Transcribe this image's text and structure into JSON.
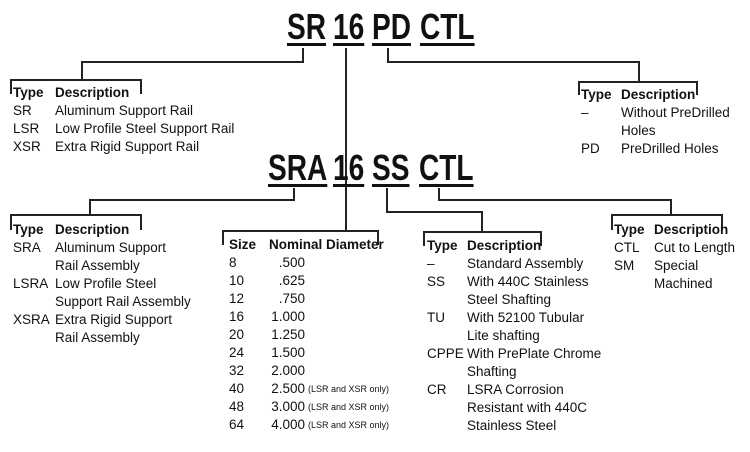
{
  "top_code": {
    "parts": [
      "SR",
      "16",
      "PD",
      "CTL"
    ]
  },
  "bottom_code": {
    "parts": [
      "SRA",
      "16",
      "SS",
      "CTL"
    ]
  },
  "rail_type_table": {
    "headers": [
      "Type",
      "Description"
    ],
    "rows": [
      {
        "type": "SR",
        "desc": "Aluminum Support Rail"
      },
      {
        "type": "LSR",
        "desc": "Low Profile Steel Support Rail"
      },
      {
        "type": "XSR",
        "desc": "Extra Rigid Support Rail"
      }
    ]
  },
  "holes_table": {
    "headers": [
      "Type",
      "Description"
    ],
    "rows": [
      {
        "type": "–",
        "desc": "Without PreDrilled",
        "desc2": "Holes"
      },
      {
        "type": "PD",
        "desc": "PreDrilled Holes"
      }
    ]
  },
  "assembly_type_table": {
    "headers": [
      "Type",
      "Description"
    ],
    "rows": [
      {
        "type": "SRA",
        "desc": "Aluminum Support",
        "desc2": "Rail Assembly"
      },
      {
        "type": "LSRA",
        "desc": "Low Profile Steel",
        "desc2": "Support Rail Assembly"
      },
      {
        "type": "XSRA",
        "desc": "Extra Rigid Support",
        "desc2": "Rail Assembly"
      }
    ]
  },
  "size_table": {
    "headers": [
      "Size",
      "Nominal Diameter"
    ],
    "rows": [
      {
        "size": "8",
        "dia": ".500",
        "note": ""
      },
      {
        "size": "10",
        "dia": ".625",
        "note": ""
      },
      {
        "size": "12",
        "dia": ".750",
        "note": ""
      },
      {
        "size": "16",
        "dia": "1.000",
        "note": ""
      },
      {
        "size": "20",
        "dia": "1.250",
        "note": ""
      },
      {
        "size": "24",
        "dia": "1.500",
        "note": ""
      },
      {
        "size": "32",
        "dia": "2.000",
        "note": ""
      },
      {
        "size": "40",
        "dia": "2.500",
        "note": "(LSR and XSR only)"
      },
      {
        "size": "48",
        "dia": "3.000",
        "note": "(LSR and XSR only)"
      },
      {
        "size": "64",
        "dia": "4.000",
        "note": "(LSR and XSR only)"
      }
    ]
  },
  "shaft_table": {
    "headers": [
      "Type",
      "Description"
    ],
    "lines": [
      {
        "type": "–",
        "desc": "Standard Assembly"
      },
      {
        "type": "SS",
        "desc": "With 440C Stainless"
      },
      {
        "type": "",
        "desc": "Steel Shafting"
      },
      {
        "type": "TU",
        "desc": "With 52100 Tubular"
      },
      {
        "type": "",
        "desc": "Lite shafting"
      },
      {
        "type": "CPPE",
        "desc": "With PrePlate Chrome"
      },
      {
        "type": "",
        "desc": "Shafting"
      },
      {
        "type": "CR",
        "desc": "LSRA Corrosion"
      },
      {
        "type": "",
        "desc": "Resistant with 440C"
      },
      {
        "type": "",
        "desc": "Stainless Steel"
      }
    ]
  },
  "length_table": {
    "headers": [
      "Type",
      "Description"
    ],
    "lines": [
      {
        "type": "CTL",
        "desc": "Cut to Length"
      },
      {
        "type": "SM",
        "desc": "Special"
      },
      {
        "type": "",
        "desc": "Machined"
      }
    ]
  }
}
